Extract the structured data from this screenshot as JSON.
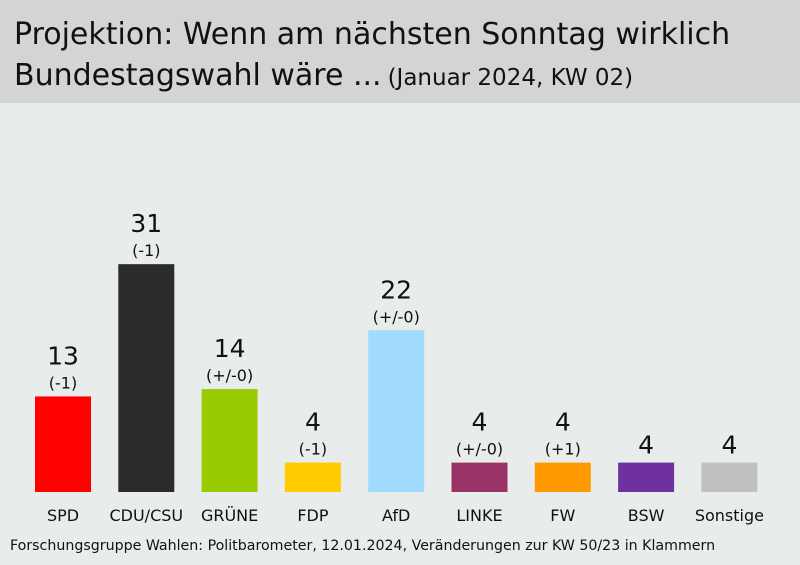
{
  "chart_data": {
    "type": "bar",
    "title": "Projektion: Wenn am nächsten Sonntag wirklich Bundestagswahl wäre ...",
    "subtitle": "(Januar 2024, KW 02)",
    "categories": [
      "SPD",
      "CDU/CSU",
      "GRÜNE",
      "FDP",
      "AfD",
      "LINKE",
      "FW",
      "BSW",
      "Sonstige"
    ],
    "values": [
      13,
      31,
      14,
      4,
      22,
      4,
      4,
      4,
      4
    ],
    "changes": [
      "(-1)",
      "(-1)",
      "(+/-0)",
      "(-1)",
      "(+/-0)",
      "(+/-0)",
      "(+1)",
      "",
      ""
    ],
    "colors": [
      "#ff0000",
      "#2b2b2b",
      "#99cc00",
      "#ffcc00",
      "#a0daff",
      "#993366",
      "#ff9900",
      "#7030a0",
      "#c0c0c0"
    ],
    "ylim": [
      0,
      31
    ],
    "grid": false,
    "source": "Forschungsgruppe Wahlen: Politbarometer, 12.01.2024, Veränderungen zur KW 50/23 in Klammern"
  }
}
